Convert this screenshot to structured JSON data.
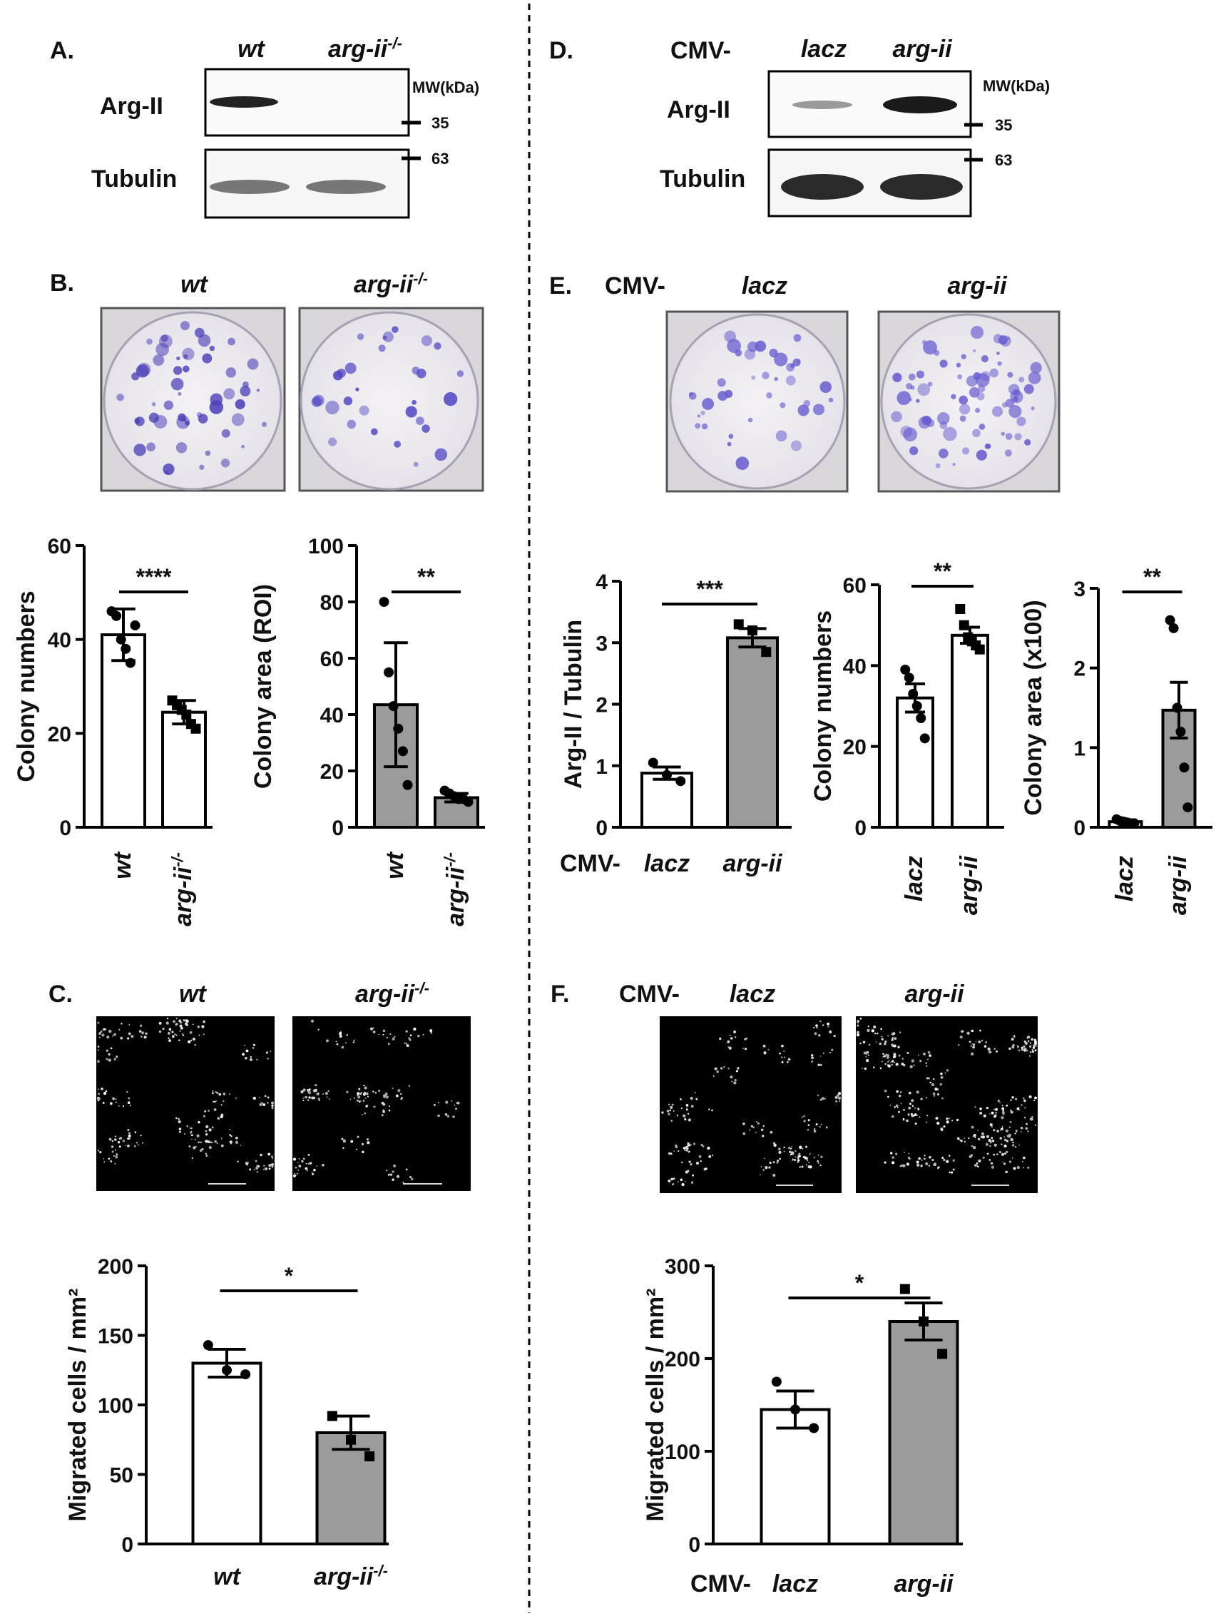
{
  "figure": {
    "panel_letters": [
      "A.",
      "B.",
      "C.",
      "D.",
      "E.",
      "F."
    ],
    "cmv_prefix": "CMV-",
    "mw_label": "MW(kDa)",
    "markers": [
      "35",
      "63"
    ],
    "blot_rows": [
      "Arg-II",
      "Tubulin"
    ],
    "panel_a": {
      "lanes": [
        "wt",
        "arg-ii-/-"
      ]
    },
    "panel_b": {
      "images": [
        "wt",
        "arg-ii-/-"
      ]
    },
    "panel_c": {
      "images": [
        "wt",
        "arg-ii-/-"
      ]
    },
    "panel_d": {
      "lanes": [
        "lacz",
        "arg-ii"
      ]
    },
    "panel_e": {
      "images": [
        "lacz",
        "arg-ii"
      ]
    },
    "panel_f": {
      "images": [
        "lacz",
        "arg-ii"
      ]
    },
    "colors": {
      "bar_gray": "#9b9b9b",
      "bar_white": "#ffffff",
      "crystal_violet": "#5b52c9",
      "axis": "#000000"
    }
  },
  "chart_data": [
    {
      "id": "B-colony-numbers",
      "type": "bar",
      "categories": [
        "wt",
        "arg-ii-/-"
      ],
      "values": [
        41,
        24.5
      ],
      "errors": [
        5.5,
        2.5
      ],
      "points": [
        [
          46,
          45,
          40,
          38,
          35,
          43
        ],
        [
          27,
          26,
          25,
          24,
          22,
          21
        ]
      ],
      "bar_colors": [
        "#ffffff",
        "#ffffff"
      ],
      "marker": "circle-square",
      "ylabel": "Colony numbers",
      "ylim": [
        0,
        60
      ],
      "yticks": [
        0,
        20,
        40,
        60
      ],
      "significance": "****"
    },
    {
      "id": "B-colony-area",
      "type": "bar",
      "categories": [
        "wt",
        "arg-ii-/-"
      ],
      "values": [
        43.5,
        10.5
      ],
      "errors": [
        22,
        1.5
      ],
      "points": [
        [
          80,
          55,
          43,
          35,
          27,
          15
        ],
        [
          13,
          12,
          11,
          10,
          10,
          9
        ]
      ],
      "bar_colors": [
        "#9b9b9b",
        "#9b9b9b"
      ],
      "marker": "circle",
      "ylabel": "Colony area (ROI)",
      "ylim": [
        0,
        100
      ],
      "yticks": [
        0,
        20,
        40,
        60,
        80,
        100
      ],
      "significance": "**"
    },
    {
      "id": "C-migration",
      "type": "bar",
      "categories": [
        "wt",
        "arg-ii-/-"
      ],
      "values": [
        130,
        80
      ],
      "errors": [
        10,
        12
      ],
      "points": [
        [
          143,
          125,
          122
        ],
        [
          92,
          75,
          63
        ]
      ],
      "bar_colors": [
        "#ffffff",
        "#9b9b9b"
      ],
      "marker": "circle-square",
      "ylabel": "Migrated cells / mm²",
      "ylim": [
        0,
        200
      ],
      "yticks": [
        0,
        50,
        100,
        150,
        200
      ],
      "significance": "*"
    },
    {
      "id": "E-argii-tubulin",
      "type": "bar",
      "categories": [
        "lacz",
        "arg-ii"
      ],
      "values": [
        0.88,
        3.08
      ],
      "errors": [
        0.1,
        0.15
      ],
      "points": [
        [
          1.05,
          0.85,
          0.75
        ],
        [
          3.3,
          3.2,
          2.85
        ]
      ],
      "bar_colors": [
        "#ffffff",
        "#9b9b9b"
      ],
      "marker": "circle-square",
      "ylabel": "Arg-II / Tubulin",
      "ylim": [
        0,
        4
      ],
      "yticks": [
        0,
        1,
        2,
        3,
        4
      ],
      "significance": "***"
    },
    {
      "id": "E-colony-numbers",
      "type": "bar",
      "categories": [
        "lacz",
        "arg-ii"
      ],
      "values": [
        32,
        47.5
      ],
      "errors": [
        3.5,
        2
      ],
      "points": [
        [
          39,
          37,
          33,
          30,
          27,
          22
        ],
        [
          54,
          50,
          47,
          46,
          45,
          44
        ]
      ],
      "bar_colors": [
        "#ffffff",
        "#ffffff"
      ],
      "marker": "circle-square",
      "ylabel": "Colony numbers",
      "ylim": [
        0,
        60
      ],
      "yticks": [
        0,
        20,
        40,
        60
      ],
      "significance": "**"
    },
    {
      "id": "E-colony-area",
      "type": "bar",
      "categories": [
        "lacz",
        "arg-ii"
      ],
      "values": [
        0.07,
        1.47
      ],
      "errors": [
        0.02,
        0.35
      ],
      "points": [
        [
          0.1,
          0.08,
          0.07,
          0.06,
          0.05,
          0.05
        ],
        [
          2.6,
          2.5,
          1.5,
          1.2,
          0.75,
          0.25
        ]
      ],
      "bar_colors": [
        "#ffffff",
        "#9b9b9b"
      ],
      "marker": "circle",
      "ylabel": "Colony area (x100)",
      "ylim": [
        0,
        3
      ],
      "yticks": [
        0,
        1,
        2,
        3
      ],
      "significance": "**"
    },
    {
      "id": "F-migration",
      "type": "bar",
      "categories": [
        "lacz",
        "arg-ii"
      ],
      "values": [
        145,
        240
      ],
      "errors": [
        20,
        20
      ],
      "points": [
        [
          175,
          145,
          125
        ],
        [
          275,
          240,
          205
        ]
      ],
      "bar_colors": [
        "#ffffff",
        "#9b9b9b"
      ],
      "marker": "circle-square",
      "ylabel": "Migrated cells / mm²",
      "ylim": [
        0,
        300
      ],
      "yticks": [
        0,
        100,
        200,
        300
      ],
      "significance": "*"
    }
  ]
}
